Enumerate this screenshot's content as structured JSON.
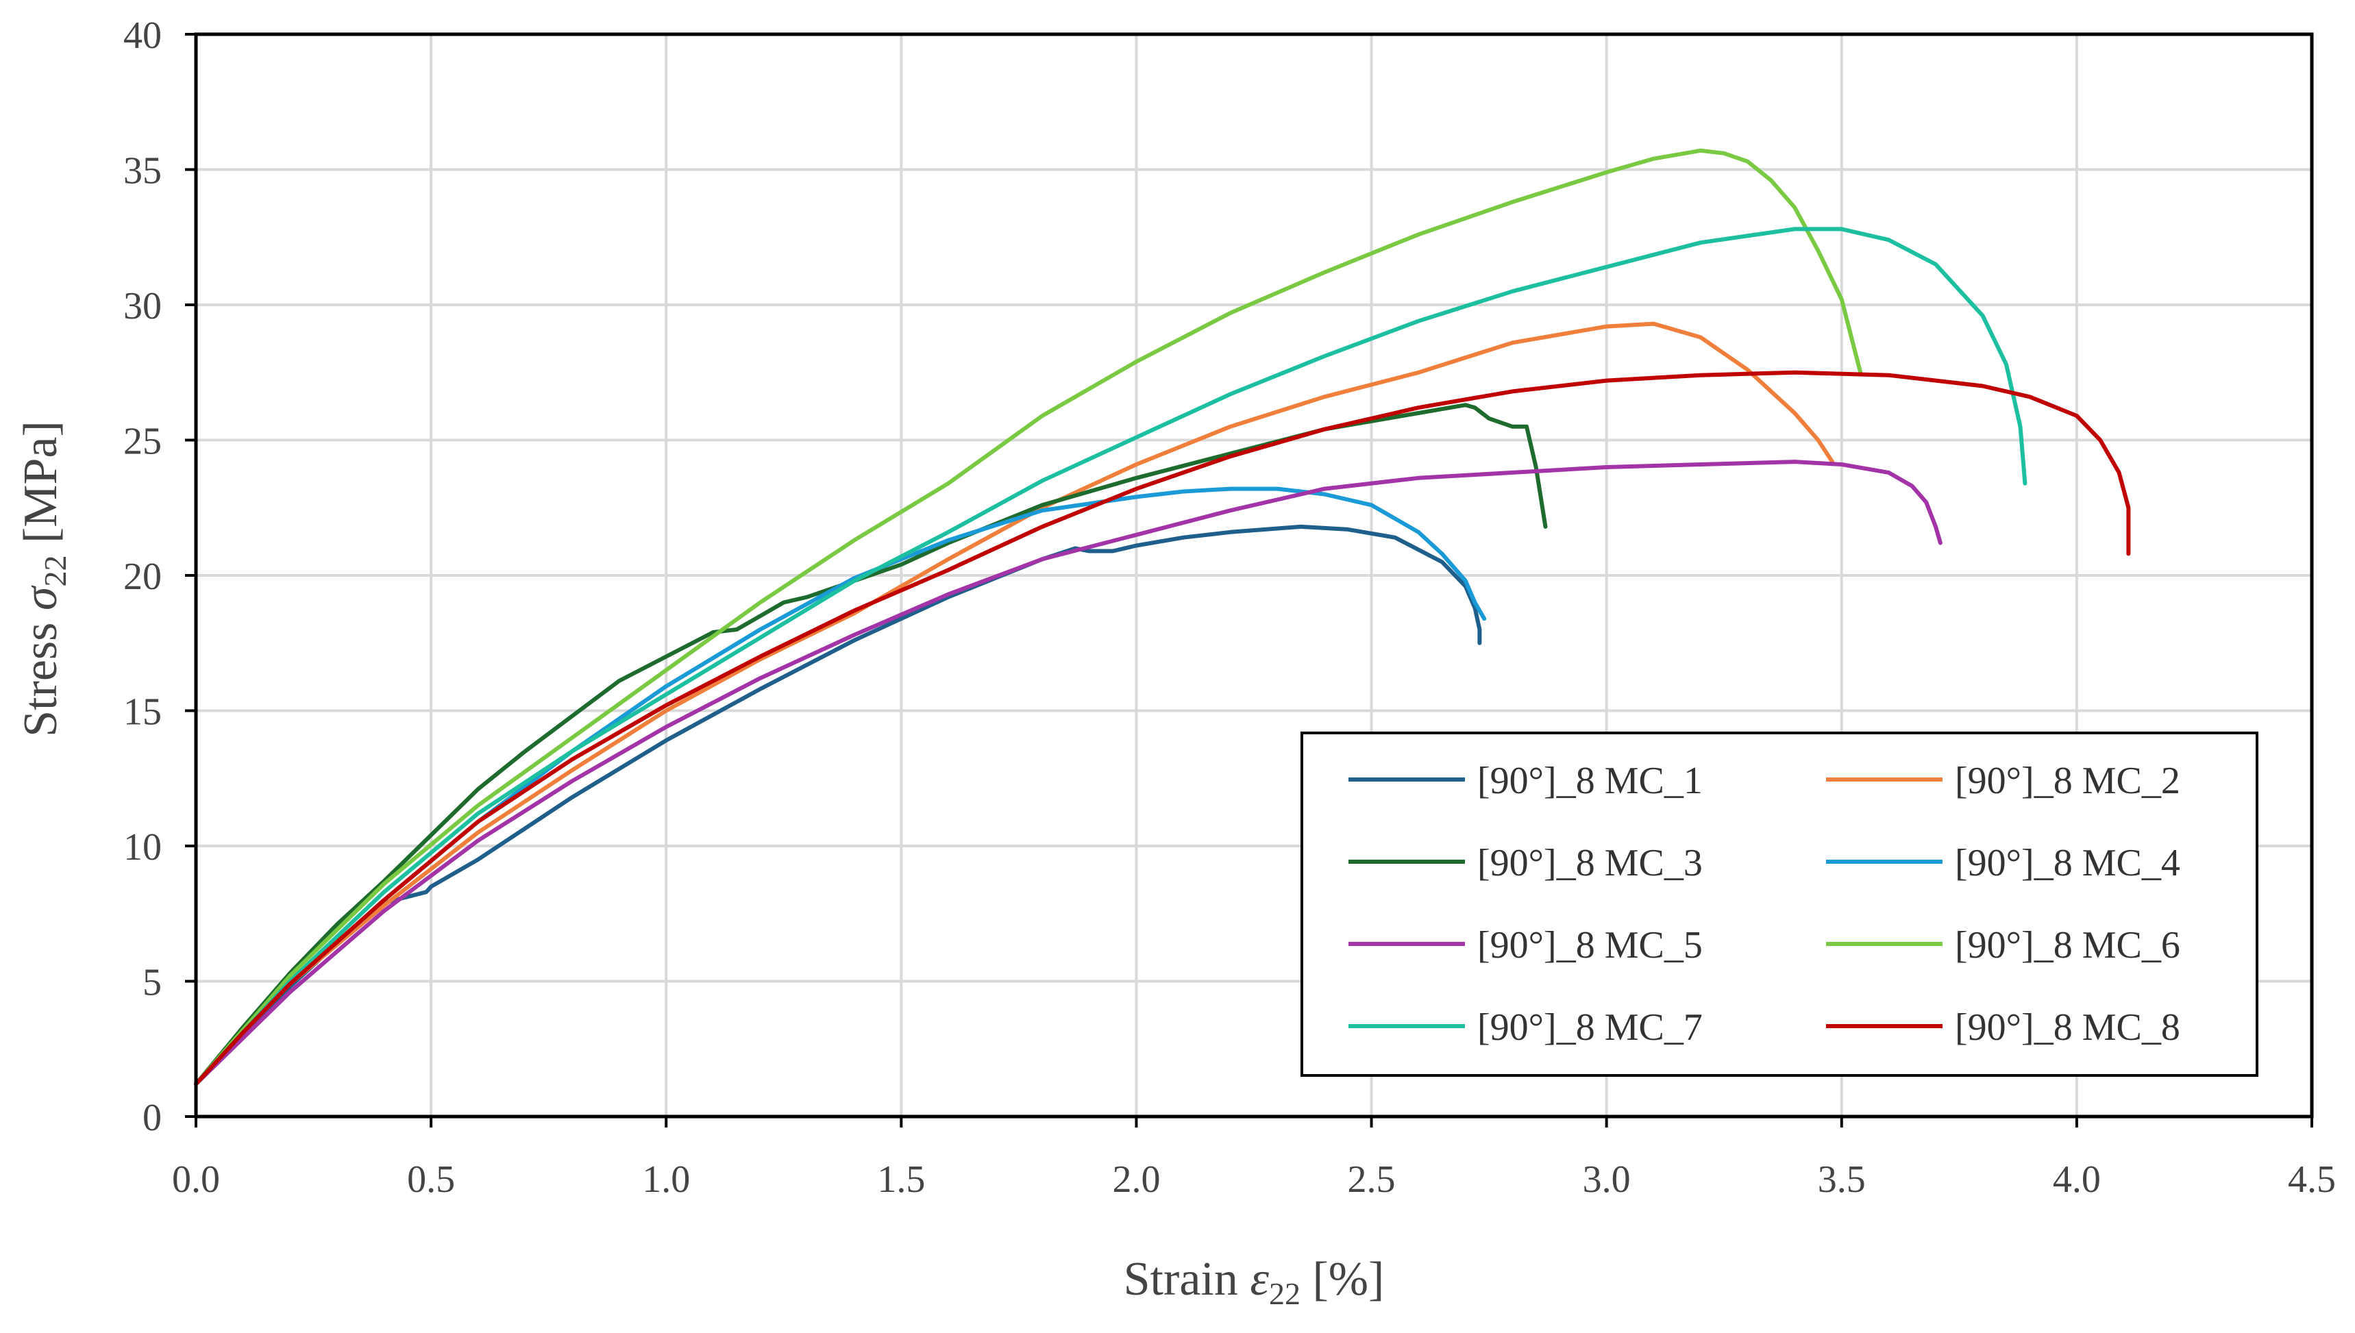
{
  "chart_data": {
    "type": "line",
    "xlabel": {
      "prefix": "Strain ",
      "symbol": "ε",
      "subscript": "22",
      "suffix": " [%]"
    },
    "ylabel": {
      "prefix": "Stress ",
      "symbol": "σ",
      "subscript": "22",
      "suffix": " [MPa]"
    },
    "xlim": [
      0,
      4.5
    ],
    "ylim": [
      0,
      40
    ],
    "xticks": [
      "0.0",
      "0.5",
      "1.0",
      "1.5",
      "2.0",
      "2.5",
      "3.0",
      "3.5",
      "4.0",
      "4.5"
    ],
    "yticks": [
      "0",
      "5",
      "10",
      "15",
      "20",
      "25",
      "30",
      "35",
      "40"
    ],
    "grid": true,
    "legend_position": "lower-right",
    "series": [
      {
        "name": "[90°]_8 MC_1",
        "color": "#1f5f8b",
        "x": [
          0,
          0.1,
          0.2,
          0.3,
          0.4,
          0.49,
          0.5,
          0.6,
          0.8,
          1.0,
          1.2,
          1.4,
          1.6,
          1.8,
          1.87,
          1.9,
          1.95,
          2.0,
          2.1,
          2.2,
          2.35,
          2.45,
          2.55,
          2.65,
          2.7,
          2.72,
          2.73,
          2.73
        ],
        "y": [
          1.2,
          3.0,
          4.8,
          6.4,
          7.9,
          8.3,
          8.5,
          9.5,
          11.8,
          13.9,
          15.8,
          17.6,
          19.2,
          20.6,
          21.0,
          20.9,
          20.9,
          21.1,
          21.4,
          21.6,
          21.8,
          21.7,
          21.4,
          20.5,
          19.6,
          18.8,
          18.0,
          17.5
        ]
      },
      {
        "name": "[90°]_8 MC_2",
        "color": "#f07f3c",
        "x": [
          0,
          0.1,
          0.2,
          0.4,
          0.6,
          0.8,
          1.0,
          1.2,
          1.4,
          1.6,
          1.8,
          2.0,
          2.2,
          2.4,
          2.6,
          2.8,
          3.0,
          3.1,
          3.2,
          3.3,
          3.4,
          3.45,
          3.48
        ],
        "y": [
          1.2,
          3.1,
          4.9,
          7.8,
          10.5,
          12.8,
          15.0,
          16.9,
          18.6,
          20.6,
          22.5,
          24.1,
          25.5,
          26.6,
          27.5,
          28.6,
          29.2,
          29.3,
          28.8,
          27.6,
          26.0,
          25.0,
          24.2
        ]
      },
      {
        "name": "[90°]_8 MC_3",
        "color": "#1e6b2e",
        "x": [
          0,
          0.1,
          0.2,
          0.3,
          0.4,
          0.5,
          0.6,
          0.7,
          0.8,
          0.9,
          1.0,
          1.1,
          1.15,
          1.2,
          1.25,
          1.3,
          1.4,
          1.5,
          1.6,
          1.8,
          2.0,
          2.2,
          2.4,
          2.6,
          2.7,
          2.72,
          2.75,
          2.8,
          2.83,
          2.85,
          2.87
        ],
        "y": [
          1.2,
          3.3,
          5.3,
          7.1,
          8.7,
          10.4,
          12.1,
          13.5,
          14.8,
          16.1,
          17.0,
          17.9,
          18.0,
          18.5,
          19.0,
          19.2,
          19.8,
          20.4,
          21.2,
          22.6,
          23.6,
          24.5,
          25.4,
          26.0,
          26.3,
          26.2,
          25.8,
          25.5,
          25.5,
          24.0,
          21.8
        ]
      },
      {
        "name": "[90°]_8 MC_4",
        "color": "#1a9ad6",
        "x": [
          0,
          0.1,
          0.2,
          0.4,
          0.6,
          0.8,
          1.0,
          1.2,
          1.4,
          1.6,
          1.8,
          2.0,
          2.1,
          2.2,
          2.3,
          2.4,
          2.5,
          2.6,
          2.65,
          2.7,
          2.72,
          2.74
        ],
        "y": [
          1.2,
          3.1,
          4.9,
          8.0,
          10.9,
          13.5,
          15.9,
          18.0,
          19.9,
          21.3,
          22.4,
          22.9,
          23.1,
          23.2,
          23.2,
          23.0,
          22.6,
          21.6,
          20.8,
          19.8,
          19.0,
          18.4
        ]
      },
      {
        "name": "[90°]_8 MC_5",
        "color": "#a234a8",
        "x": [
          0,
          0.1,
          0.2,
          0.4,
          0.6,
          0.8,
          1.0,
          1.2,
          1.4,
          1.6,
          1.8,
          2.0,
          2.2,
          2.4,
          2.6,
          2.8,
          3.0,
          3.2,
          3.4,
          3.5,
          3.6,
          3.65,
          3.68,
          3.7,
          3.71
        ],
        "y": [
          1.2,
          2.9,
          4.6,
          7.6,
          10.2,
          12.4,
          14.4,
          16.2,
          17.8,
          19.3,
          20.6,
          21.5,
          22.4,
          23.2,
          23.6,
          23.8,
          24.0,
          24.1,
          24.2,
          24.1,
          23.8,
          23.3,
          22.7,
          21.8,
          21.2
        ]
      },
      {
        "name": "[90°]_8 MC_6",
        "color": "#7ac943",
        "x": [
          0,
          0.1,
          0.2,
          0.4,
          0.6,
          0.8,
          1.0,
          1.2,
          1.4,
          1.6,
          1.8,
          2.0,
          2.2,
          2.4,
          2.6,
          2.8,
          3.0,
          3.1,
          3.2,
          3.25,
          3.3,
          3.35,
          3.4,
          3.45,
          3.5,
          3.54
        ],
        "y": [
          1.2,
          3.2,
          5.2,
          8.6,
          11.5,
          14.0,
          16.5,
          19.0,
          21.3,
          23.4,
          25.9,
          27.9,
          29.7,
          31.2,
          32.6,
          33.8,
          34.9,
          35.4,
          35.7,
          35.6,
          35.3,
          34.6,
          33.6,
          32.0,
          30.2,
          27.5
        ]
      },
      {
        "name": "[90°]_8 MC_7",
        "color": "#1cbfa0",
        "x": [
          0,
          0.1,
          0.2,
          0.4,
          0.6,
          0.8,
          1.0,
          1.2,
          1.4,
          1.6,
          1.8,
          2.0,
          2.2,
          2.4,
          2.6,
          2.8,
          3.0,
          3.2,
          3.4,
          3.5,
          3.6,
          3.7,
          3.8,
          3.85,
          3.88,
          3.89
        ],
        "y": [
          1.2,
          3.1,
          5.0,
          8.3,
          11.2,
          13.5,
          15.6,
          17.7,
          19.8,
          21.6,
          23.5,
          25.1,
          26.7,
          28.1,
          29.4,
          30.5,
          31.4,
          32.3,
          32.8,
          32.8,
          32.4,
          31.5,
          29.6,
          27.8,
          25.5,
          23.4
        ]
      },
      {
        "name": "[90°]_8 MC_8",
        "color": "#c00000",
        "x": [
          0,
          0.1,
          0.2,
          0.4,
          0.6,
          0.8,
          1.0,
          1.2,
          1.4,
          1.6,
          1.8,
          2.0,
          2.2,
          2.4,
          2.6,
          2.8,
          3.0,
          3.2,
          3.4,
          3.6,
          3.8,
          3.9,
          4.0,
          4.05,
          4.09,
          4.11,
          4.11
        ],
        "y": [
          1.2,
          3.1,
          4.9,
          8.0,
          10.9,
          13.2,
          15.2,
          17.0,
          18.7,
          20.2,
          21.8,
          23.2,
          24.4,
          25.4,
          26.2,
          26.8,
          27.2,
          27.4,
          27.5,
          27.4,
          27.0,
          26.6,
          25.9,
          25.0,
          23.8,
          22.5,
          20.8
        ]
      }
    ]
  }
}
